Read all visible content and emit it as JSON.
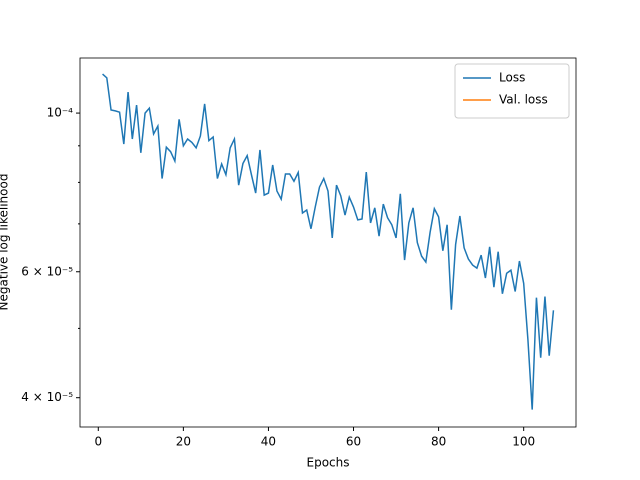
{
  "chart_data": {
    "type": "line",
    "xlabel": "Epochs",
    "ylabel": "Negative log likelihood",
    "x": [
      1,
      2,
      3,
      4,
      5,
      6,
      7,
      8,
      9,
      10,
      11,
      12,
      13,
      14,
      15,
      16,
      17,
      18,
      19,
      20,
      21,
      22,
      23,
      24,
      25,
      26,
      27,
      28,
      29,
      30,
      31,
      32,
      33,
      34,
      35,
      36,
      37,
      38,
      39,
      40,
      41,
      42,
      43,
      44,
      45,
      46,
      47,
      48,
      49,
      50,
      51,
      52,
      53,
      54,
      55,
      56,
      57,
      58,
      59,
      60,
      61,
      62,
      63,
      64,
      65,
      66,
      67,
      68,
      69,
      70,
      71,
      72,
      73,
      74,
      75,
      76,
      77,
      78,
      79,
      80,
      81,
      82,
      83,
      84,
      85,
      86,
      87,
      88,
      89,
      90,
      91,
      92,
      93,
      94,
      95,
      96,
      97,
      98,
      99,
      100,
      101,
      102,
      103,
      104,
      105,
      106,
      107
    ],
    "series": [
      {
        "name": "Loss",
        "color": "#1f77b4",
        "values": [
          0.0001134,
          0.000112,
          0.000101,
          0.0001007,
          0.0001003,
          9.05e-05,
          0.000107,
          9.2e-05,
          0.0001026,
          8.8e-05,
          0.0001,
          0.0001016,
          9.35e-05,
          9.59e-05,
          8.1e-05,
          8.96e-05,
          8.83e-05,
          8.57e-05,
          9.8e-05,
          9e-05,
          9.2e-05,
          9.1e-05,
          8.94e-05,
          9.29e-05,
          0.000103,
          9.15e-05,
          9.26e-05,
          8.1e-05,
          8.49e-05,
          8.2e-05,
          8.94e-05,
          9.2e-05,
          7.93e-05,
          8.5e-05,
          8.72e-05,
          8.2e-05,
          7.73e-05,
          8.88e-05,
          7.68e-05,
          7.73e-05,
          8.46e-05,
          7.78e-05,
          7.58e-05,
          8.22e-05,
          8.22e-05,
          8.03e-05,
          8.26e-05,
          7.25e-05,
          7.32e-05,
          6.89e-05,
          7.39e-05,
          7.88e-05,
          8.1e-05,
          7.78e-05,
          6.69e-05,
          7.93e-05,
          7.66e-05,
          7.2e-05,
          7.63e-05,
          7.39e-05,
          7.09e-05,
          7.11e-05,
          8.27e-05,
          7.02e-05,
          7.37e-05,
          6.73e-05,
          7.46e-05,
          7.14e-05,
          6.98e-05,
          6.69e-05,
          7.71e-05,
          6.23e-05,
          7.02e-05,
          7.37e-05,
          6.59e-05,
          6.31e-05,
          6.19e-05,
          6.81e-05,
          7.35e-05,
          7.16e-05,
          6.42e-05,
          6.98e-05,
          5.31e-05,
          6.55e-05,
          7.18e-05,
          6.48e-05,
          6.25e-05,
          6.13e-05,
          6.07e-05,
          6.33e-05,
          5.88e-05,
          6.5e-05,
          5.71e-05,
          6.4e-05,
          5.59e-05,
          5.97e-05,
          6.03e-05,
          5.63e-05,
          6.21e-05,
          5.78e-05,
          4.82e-05,
          3.85e-05,
          5.52e-05,
          4.55e-05,
          5.54e-05,
          4.58e-05,
          5.3e-05
        ]
      },
      {
        "name": "Val. loss",
        "color": "#ff7f0e",
        "values": [
          null,
          null,
          null,
          null,
          null,
          null,
          null,
          null,
          null,
          null,
          null,
          null,
          null,
          null,
          null,
          null,
          null,
          null,
          null,
          null,
          null,
          null,
          null,
          null,
          null,
          null,
          null,
          null,
          null,
          null,
          null,
          null,
          null,
          null,
          null,
          null,
          null,
          null,
          null,
          null,
          null,
          null,
          null,
          null,
          null,
          null,
          null,
          null,
          null,
          null,
          null,
          null,
          null,
          null,
          null,
          null,
          null,
          null,
          null,
          null,
          null,
          null,
          null,
          null,
          null,
          null,
          null,
          null,
          null,
          null,
          null,
          null,
          null,
          null,
          null,
          null,
          null,
          null,
          null,
          null,
          null,
          null,
          null,
          null,
          null,
          null,
          null,
          null,
          null,
          null,
          null,
          null,
          null,
          null,
          null,
          null,
          null,
          null,
          null,
          null,
          null,
          null,
          null,
          null,
          null,
          null,
          null
        ]
      }
    ],
    "xlim": [
      -4.3,
      112.3
    ],
    "xticks": [
      0,
      20,
      40,
      60,
      80,
      100
    ],
    "ylim": [
      3.64e-05,
      0.0001194
    ],
    "yscale": "log",
    "yticks": [
      {
        "value": 4e-05,
        "label": "4 × 10⁻⁵"
      },
      {
        "value": 6e-05,
        "label": "6 × 10⁻⁵"
      },
      {
        "value": 0.0001,
        "label": "10⁻⁴"
      }
    ],
    "yminorticks": [
      5e-05,
      7e-05,
      8e-05,
      9e-05
    ],
    "legend": "upper right"
  }
}
